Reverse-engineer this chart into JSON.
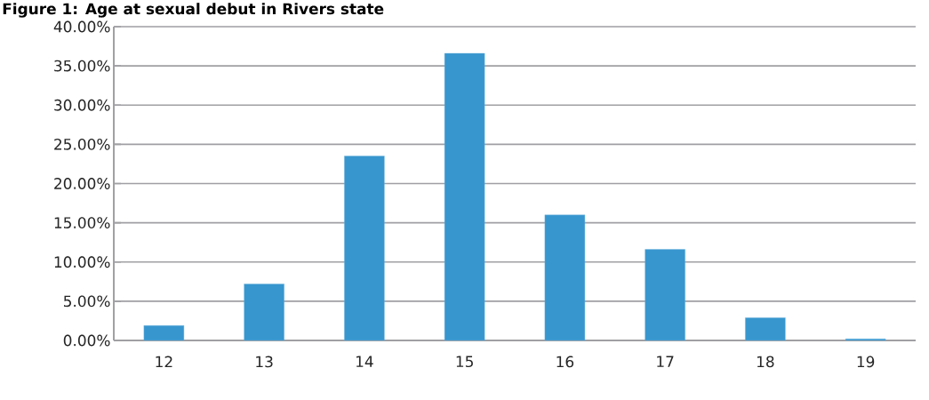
{
  "chart_data": {
    "type": "bar",
    "title": "Figure 1: Age at sexual debut in Rivers state",
    "categories": [
      "12",
      "13",
      "14",
      "15",
      "16",
      "17",
      "18",
      "19"
    ],
    "values": [
      1.9,
      7.2,
      23.5,
      36.6,
      16.0,
      11.6,
      2.9,
      0.2
    ],
    "color": "#3796ce",
    "ylim": [
      0,
      40
    ],
    "yticks": [
      {
        "value": 0,
        "label": "0.00%"
      },
      {
        "value": 5,
        "label": "5.00%"
      },
      {
        "value": 10,
        "label": "10.00%"
      },
      {
        "value": 15,
        "label": "15.00%"
      },
      {
        "value": 20,
        "label": "20.00%"
      },
      {
        "value": 25,
        "label": "25.00%"
      },
      {
        "value": 30,
        "label": "30.00%"
      },
      {
        "value": 35,
        "label": "35.00%"
      },
      {
        "value": 40,
        "label": "40.00%"
      }
    ],
    "grid": "y"
  }
}
